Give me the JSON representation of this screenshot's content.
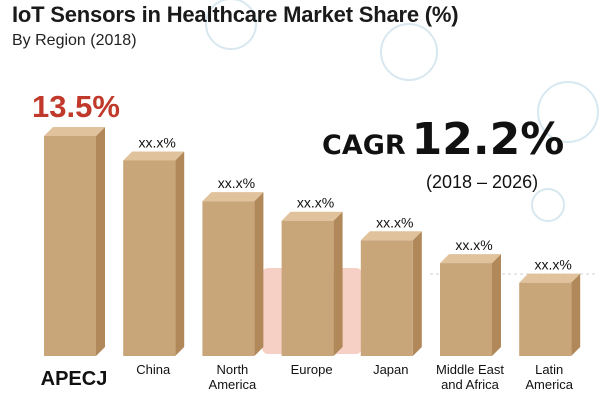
{
  "title": "IoT Sensors in Healthcare Market Share (%)",
  "subtitle": "By Region (2018)",
  "cagr": {
    "label": "CAGR",
    "value": "12.2%",
    "period": "(2018 – 2026)"
  },
  "colors": {
    "bar_front": "#c9a57a",
    "bar_side": "#b08859",
    "bar_top": "#e0c39c",
    "highlight_text": "#c0392b",
    "background_icons": "#d8e8f0",
    "watermark": "#e9785a"
  },
  "chart_data": {
    "type": "bar",
    "categories": [
      "APECJ",
      "China",
      "North America",
      "Europe",
      "Japan",
      "Middle East and Africa",
      "Latin America"
    ],
    "category_lines": [
      [
        "APECJ"
      ],
      [
        "China"
      ],
      [
        "North",
        "America"
      ],
      [
        "Europe"
      ],
      [
        "Japan"
      ],
      [
        "Middle East",
        "and Africa"
      ],
      [
        "Latin",
        "America"
      ]
    ],
    "values": [
      13.5,
      12.0,
      9.5,
      8.3,
      7.1,
      5.7,
      4.5
    ],
    "data_labels": [
      "13.5%",
      "xx.x%",
      "xx.x%",
      "xx.x%",
      "xx.x%",
      "xx.x%",
      "xx.x%"
    ],
    "highlight_index": 0,
    "ylim": [
      0,
      15
    ],
    "grid": false,
    "legend": "none",
    "xlabel": "",
    "ylabel": ""
  }
}
